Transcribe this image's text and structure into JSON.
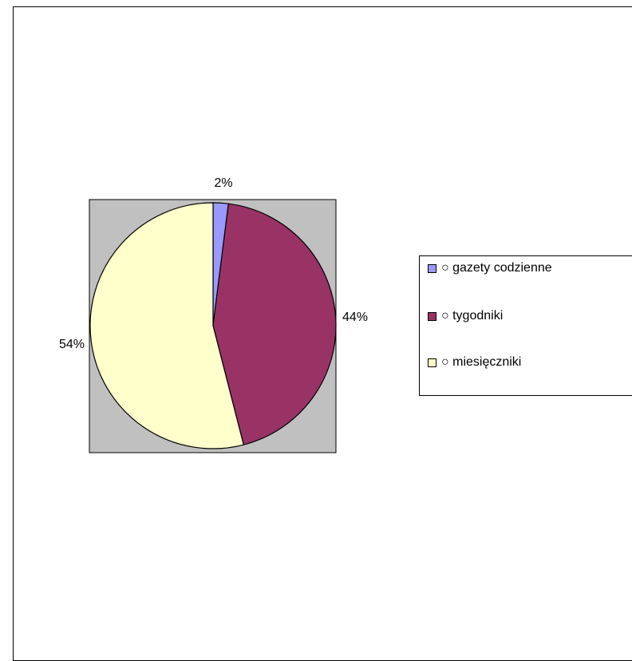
{
  "chart_data": {
    "type": "pie",
    "categories": [
      "○ gazety codzienne",
      "○ tygodniki",
      "○ miesięczniki"
    ],
    "values": [
      2,
      44,
      54
    ],
    "data_labels": [
      "2%",
      "44%",
      "54%"
    ],
    "colors": [
      "#9999ff",
      "#993366",
      "#ffffcc"
    ],
    "plot_area_color": "#c0c0c0",
    "legend_position": "right"
  },
  "legend": {
    "items": [
      {
        "label": "○ gazety codzienne",
        "color": "#9999ff"
      },
      {
        "label": "○ tygodniki",
        "color": "#993366"
      },
      {
        "label": "○ miesięczniki",
        "color": "#ffffcc"
      }
    ]
  }
}
